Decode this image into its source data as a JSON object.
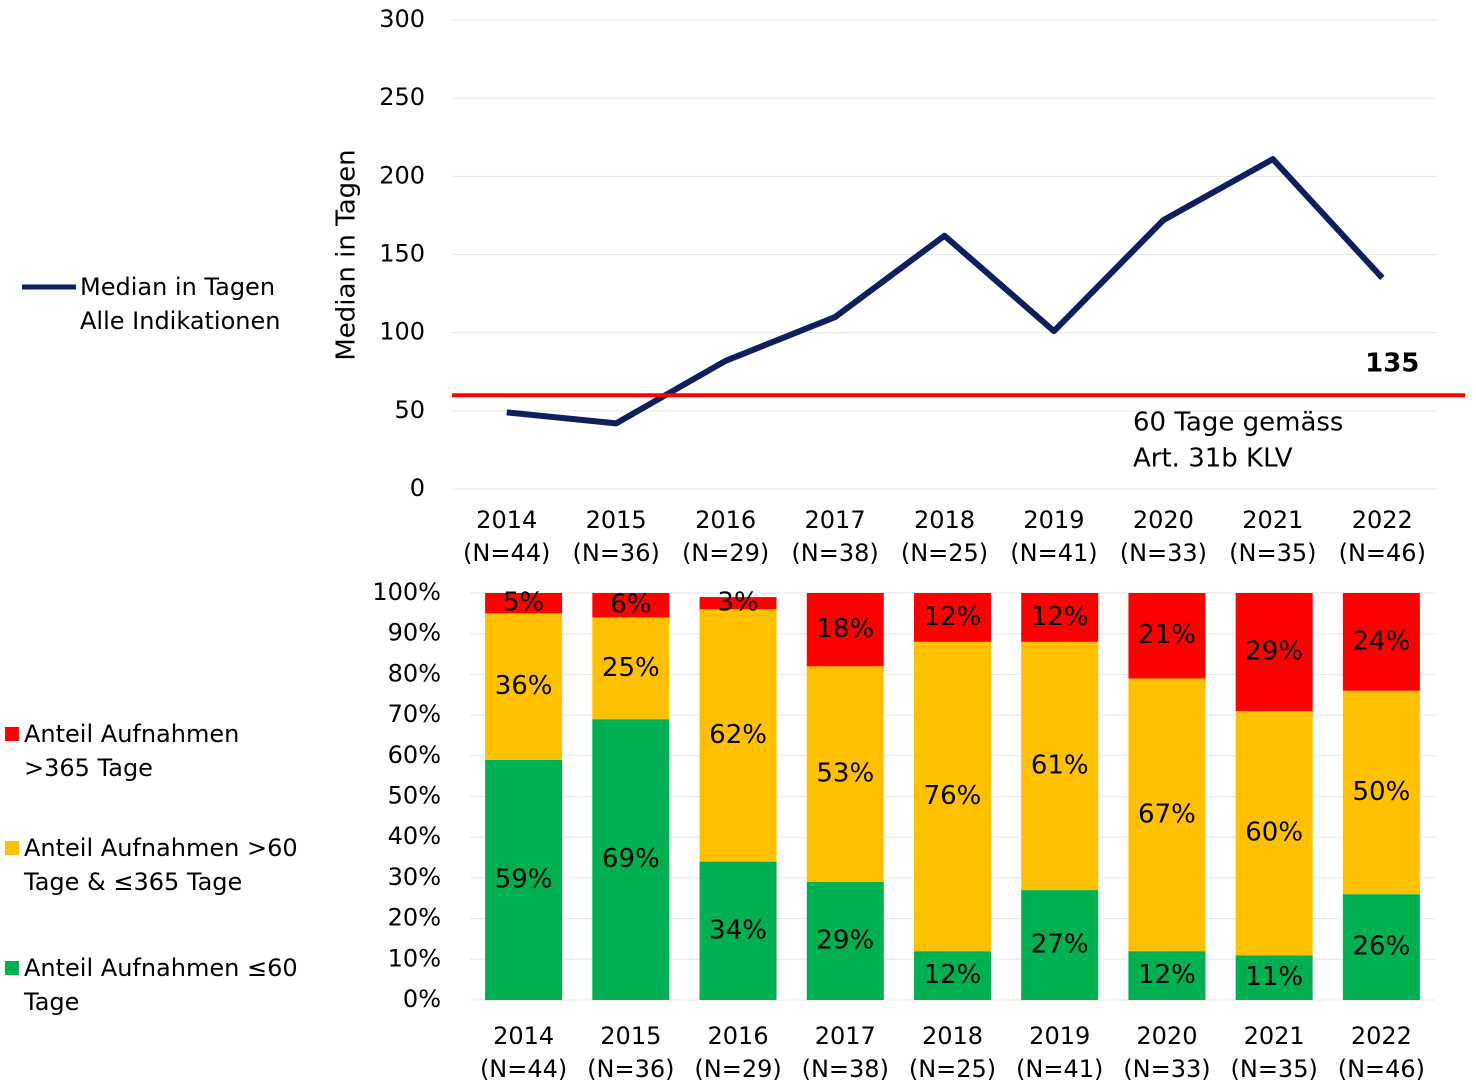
{
  "chart_data": [
    {
      "type": "line",
      "ylabel": "Median in Tagen",
      "categories": [
        [
          "2014",
          "(N=44)"
        ],
        [
          "2015",
          "(N=36)"
        ],
        [
          "2016",
          "(N=29)"
        ],
        [
          "2017",
          "(N=38)"
        ],
        [
          "2018",
          "(N=25)"
        ],
        [
          "2019",
          "(N=41)"
        ],
        [
          "2020",
          "(N=33)"
        ],
        [
          "2021",
          "(N=35)"
        ],
        [
          "2022",
          "(N=46)"
        ]
      ],
      "series": [
        {
          "name": "Median in Tagen\nAlle Indikationen",
          "color": "#0d1f5c",
          "values": [
            49,
            42,
            82,
            110,
            162,
            101,
            172,
            211,
            135
          ]
        }
      ],
      "data_label_index": 8,
      "reference_line": {
        "value": 60,
        "color": "#ff0000",
        "label": [
          "60 Tage gemäss",
          "Art. 31b KLV"
        ]
      },
      "ylim": [
        0,
        300
      ],
      "yticks": [
        0,
        50,
        100,
        150,
        200,
        250,
        300
      ],
      "grid": true,
      "legend": "left"
    },
    {
      "type": "stacked_bar",
      "categories": [
        [
          "2014",
          "(N=44)"
        ],
        [
          "2015",
          "(N=36)"
        ],
        [
          "2016",
          "(N=29)"
        ],
        [
          "2017",
          "(N=38)"
        ],
        [
          "2018",
          "(N=25)"
        ],
        [
          "2019",
          "(N=41)"
        ],
        [
          "2020",
          "(N=33)"
        ],
        [
          "2021",
          "(N=35)"
        ],
        [
          "2022",
          "(N=46)"
        ]
      ],
      "series": [
        {
          "name": "Anteil Aufnahmen ≤60\nTage",
          "color": "#00b050",
          "values": [
            59,
            69,
            34,
            29,
            12,
            27,
            12,
            11,
            26
          ],
          "value_labels": [
            "59%",
            "69%",
            "34%",
            "29%",
            "12%",
            "27%",
            "12%",
            "11%",
            "26%"
          ]
        },
        {
          "name": "Anteil Aufnahmen >60\nTage & ≤365 Tage",
          "color": "#ffc000",
          "values": [
            36,
            25,
            62,
            53,
            76,
            61,
            67,
            60,
            50
          ],
          "value_labels": [
            "36%",
            "25%",
            "62%",
            "53%",
            "76%",
            "61%",
            "67%",
            "60%",
            "50%"
          ]
        },
        {
          "name": "Anteil Aufnahmen\n>365 Tage",
          "color": "#ff0000",
          "values": [
            5,
            6,
            3,
            18,
            12,
            12,
            21,
            29,
            24
          ],
          "value_labels": [
            "5%",
            "6%",
            "3%",
            "18%",
            "12%",
            "12%",
            "21%",
            "29%",
            "24%"
          ]
        }
      ],
      "ylim": [
        0,
        100
      ],
      "yticks": [
        {
          "value": 0,
          "label": "0%"
        },
        {
          "value": 10,
          "label": "10%"
        },
        {
          "value": 20,
          "label": "20%"
        },
        {
          "value": 30,
          "label": "30%"
        },
        {
          "value": 40,
          "label": "40%"
        },
        {
          "value": 50,
          "label": "50%"
        },
        {
          "value": 60,
          "label": "60%"
        },
        {
          "value": 70,
          "label": "70%"
        },
        {
          "value": 80,
          "label": "80%"
        },
        {
          "value": 90,
          "label": "90%"
        },
        {
          "value": 100,
          "label": "100%"
        }
      ],
      "grid": true,
      "legend": "left"
    }
  ]
}
